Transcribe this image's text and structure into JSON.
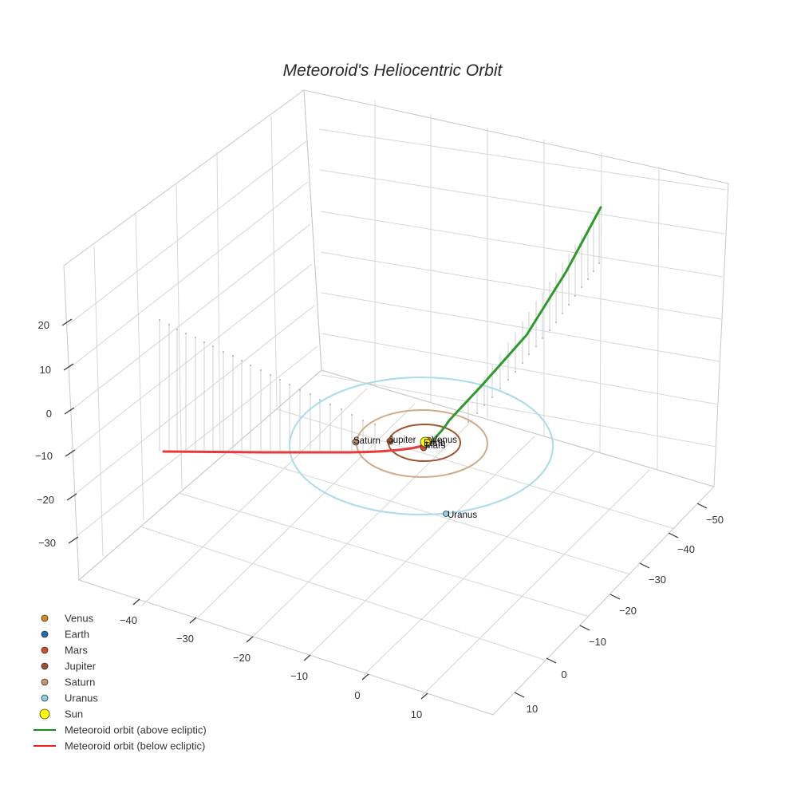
{
  "chart_data": {
    "type": "scatter3d",
    "title": "Meteoroid's Heliocentric Orbit",
    "axes": {
      "x": {
        "ticks": [
          -40,
          -30,
          -20,
          -10,
          0,
          10
        ],
        "labels": [
          "−40",
          "−30",
          "−20",
          "−10",
          "0",
          "10"
        ]
      },
      "y": {
        "ticks": [
          -50,
          -40,
          -30,
          -20,
          -10,
          0,
          10
        ],
        "labels": [
          "−50",
          "−40",
          "−30",
          "−20",
          "−10",
          "0",
          "10"
        ]
      },
      "z": {
        "ticks": [
          20,
          10,
          0,
          -10,
          -20,
          -30
        ],
        "labels": [
          "20",
          "10",
          "0",
          "−10",
          "−20",
          "−30"
        ]
      }
    },
    "bodies": [
      {
        "name": "Venus",
        "color": "#d98a1c"
      },
      {
        "name": "Earth",
        "color": "#1f6fb4"
      },
      {
        "name": "Mars",
        "color": "#d64b2a"
      },
      {
        "name": "Jupiter",
        "color": "#a0522d"
      },
      {
        "name": "Saturn",
        "color": "#c9956c"
      },
      {
        "name": "Uranus",
        "color": "#8fd0e8"
      },
      {
        "name": "Sun",
        "color": "#ffff00"
      }
    ],
    "orbits": [
      {
        "name": "Jupiter",
        "color": "#a0522d"
      },
      {
        "name": "Saturn",
        "color": "#d2ab86"
      },
      {
        "name": "Uranus",
        "color": "#a8dcec"
      }
    ],
    "series": [
      {
        "name": "Meteoroid orbit (above ecliptic)",
        "color": "#2e9a2e"
      },
      {
        "name": "Meteoroid orbit (below ecliptic)",
        "color": "#e83a3a"
      }
    ],
    "legend": [
      {
        "label": "Venus",
        "symbol": "dot",
        "color": "#d98a1c"
      },
      {
        "label": "Earth",
        "symbol": "dot",
        "color": "#1f6fb4"
      },
      {
        "label": "Mars",
        "symbol": "dot",
        "color": "#d64b2a"
      },
      {
        "label": "Jupiter",
        "symbol": "dot",
        "color": "#a0522d"
      },
      {
        "label": "Saturn",
        "symbol": "dot",
        "color": "#c9956c"
      },
      {
        "label": "Uranus",
        "symbol": "dot",
        "color": "#8fd0e8"
      },
      {
        "label": "Sun",
        "symbol": "bigdot",
        "color": "#ffff00"
      },
      {
        "label": "Meteoroid orbit (above ecliptic)",
        "symbol": "line",
        "color": "#1a8a1a"
      },
      {
        "label": "Meteoroid orbit (below ecliptic)",
        "symbol": "line",
        "color": "#e82020"
      }
    ],
    "legend_position": "bottom-left",
    "grid": true
  }
}
